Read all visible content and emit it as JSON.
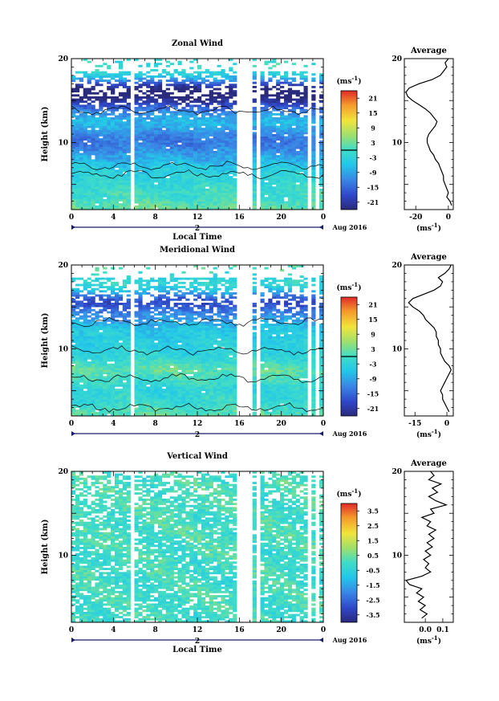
{
  "figure": {
    "x_axis_label": "Local Time",
    "date_label": "Aug 2016",
    "day_label": "2"
  },
  "chart_data": [
    {
      "type": "heatmap",
      "title": "Zonal Wind",
      "ylabel": "Height (km)",
      "xlabel": "Local Time",
      "x_ticks": [
        "0",
        "4",
        "8",
        "12",
        "16",
        "20",
        "0"
      ],
      "xlim": [
        0,
        24
      ],
      "ylim": [
        2,
        20
      ],
      "y_ticks": [
        "10",
        "20"
      ],
      "colorbar": {
        "unit": "(ms⁻¹)",
        "labels": [
          "21",
          "15",
          "9",
          "3",
          "-3",
          "-9",
          "-15",
          "-21"
        ],
        "range": [
          -24,
          24
        ],
        "contour_level": 0
      },
      "average": {
        "title": "Average",
        "xlabel": "(ms⁻¹)",
        "x_ticks": [
          "-20",
          "0"
        ],
        "xlim": [
          -27,
          3
        ],
        "ylim": [
          2,
          20
        ],
        "y_ticks": [
          "10",
          "20"
        ],
        "profile": [
          {
            "h": 2.5,
            "v": 2
          },
          {
            "h": 3,
            "v": 1
          },
          {
            "h": 3.5,
            "v": -1
          },
          {
            "h": 4,
            "v": 0
          },
          {
            "h": 4.5,
            "v": -1
          },
          {
            "h": 5,
            "v": -2
          },
          {
            "h": 5.5,
            "v": -3
          },
          {
            "h": 6,
            "v": -3
          },
          {
            "h": 6.5,
            "v": -4
          },
          {
            "h": 7,
            "v": -5
          },
          {
            "h": 7.5,
            "v": -6
          },
          {
            "h": 8,
            "v": -8
          },
          {
            "h": 8.5,
            "v": -9
          },
          {
            "h": 9,
            "v": -11
          },
          {
            "h": 9.5,
            "v": -12
          },
          {
            "h": 10,
            "v": -13
          },
          {
            "h": 10.5,
            "v": -13
          },
          {
            "h": 11,
            "v": -12
          },
          {
            "h": 11.5,
            "v": -10
          },
          {
            "h": 12,
            "v": -8
          },
          {
            "h": 12.5,
            "v": -7
          },
          {
            "h": 13,
            "v": -9
          },
          {
            "h": 13.5,
            "v": -11
          },
          {
            "h": 14,
            "v": -14
          },
          {
            "h": 14.5,
            "v": -18
          },
          {
            "h": 15,
            "v": -22
          },
          {
            "h": 15.5,
            "v": -25
          },
          {
            "h": 16,
            "v": -26
          },
          {
            "h": 16.5,
            "v": -24
          },
          {
            "h": 17,
            "v": -18
          },
          {
            "h": 17.5,
            "v": -10
          },
          {
            "h": 18,
            "v": -5
          },
          {
            "h": 18.5,
            "v": -3
          },
          {
            "h": 19,
            "v": -1
          },
          {
            "h": 19.5,
            "v": -2
          },
          {
            "h": 20,
            "v": 0
          }
        ]
      }
    },
    {
      "type": "heatmap",
      "title": "Meridional Wind",
      "ylabel": "Height (km)",
      "xlabel": "",
      "x_ticks": [
        "0",
        "4",
        "8",
        "12",
        "16",
        "20",
        "0"
      ],
      "xlim": [
        0,
        24
      ],
      "ylim": [
        2,
        20
      ],
      "y_ticks": [
        "10",
        "20"
      ],
      "colorbar": {
        "unit": "(ms⁻¹)",
        "labels": [
          "21",
          "15",
          "9",
          "3",
          "-3",
          "-9",
          "-15",
          "-21"
        ],
        "range": [
          -24,
          24
        ],
        "contour_level": 0
      },
      "average": {
        "title": "Average",
        "xlabel": "(ms⁻¹)",
        "x_ticks": [
          "-15",
          "0"
        ],
        "xlim": [
          -20,
          3
        ],
        "ylim": [
          2,
          20
        ],
        "y_ticks": [
          "10",
          "20"
        ],
        "profile": [
          {
            "h": 2.5,
            "v": 1
          },
          {
            "h": 3,
            "v": 0
          },
          {
            "h": 3.5,
            "v": -1
          },
          {
            "h": 4,
            "v": -2
          },
          {
            "h": 4.5,
            "v": -2
          },
          {
            "h": 5,
            "v": -3
          },
          {
            "h": 5.5,
            "v": -2
          },
          {
            "h": 6,
            "v": -1
          },
          {
            "h": 6.5,
            "v": 0
          },
          {
            "h": 7,
            "v": 1
          },
          {
            "h": 7.5,
            "v": 2
          },
          {
            "h": 8,
            "v": 1
          },
          {
            "h": 8.5,
            "v": -1
          },
          {
            "h": 9,
            "v": -2
          },
          {
            "h": 9.5,
            "v": -3
          },
          {
            "h": 10,
            "v": -3
          },
          {
            "h": 10.5,
            "v": -4
          },
          {
            "h": 11,
            "v": -4
          },
          {
            "h": 11.5,
            "v": -5
          },
          {
            "h": 12,
            "v": -5
          },
          {
            "h": 12.5,
            "v": -6
          },
          {
            "h": 13,
            "v": -8
          },
          {
            "h": 13.5,
            "v": -10
          },
          {
            "h": 14,
            "v": -11
          },
          {
            "h": 14.5,
            "v": -13
          },
          {
            "h": 15,
            "v": -16
          },
          {
            "h": 15.5,
            "v": -18
          },
          {
            "h": 16,
            "v": -16
          },
          {
            "h": 16.5,
            "v": -11
          },
          {
            "h": 17,
            "v": -6
          },
          {
            "h": 17.5,
            "v": -3
          },
          {
            "h": 18,
            "v": -2
          },
          {
            "h": 18.5,
            "v": -4
          },
          {
            "h": 19,
            "v": -1
          },
          {
            "h": 19.5,
            "v": 1
          },
          {
            "h": 20,
            "v": 2
          }
        ]
      }
    },
    {
      "type": "heatmap",
      "title": "Vertical Wind",
      "ylabel": "Height (km)",
      "xlabel": "Local Time",
      "x_ticks": [
        "0",
        "4",
        "8",
        "12",
        "16",
        "20",
        "0"
      ],
      "xlim": [
        0,
        24
      ],
      "ylim": [
        2,
        20
      ],
      "y_ticks": [
        "10",
        "20"
      ],
      "colorbar": {
        "unit": "(ms⁻¹)",
        "labels": [
          "3.5",
          "2.5",
          "1.5",
          "0.5",
          "-0.5",
          "-1.5",
          "-2.5",
          "-3.5"
        ],
        "range": [
          -4,
          4
        ],
        "contour_level": null
      },
      "average": {
        "title": "Average",
        "xlabel": "(ms⁻¹)",
        "x_ticks": [
          "0.0",
          "0.1"
        ],
        "xlim": [
          -0.12,
          0.16
        ],
        "ylim": [
          2,
          20
        ],
        "y_ticks": [
          "10",
          "20"
        ],
        "profile": [
          {
            "h": 2.5,
            "v": -0.02
          },
          {
            "h": 3,
            "v": 0.01
          },
          {
            "h": 3.5,
            "v": -0.03
          },
          {
            "h": 4,
            "v": 0.0
          },
          {
            "h": 4.5,
            "v": -0.04
          },
          {
            "h": 5,
            "v": -0.01
          },
          {
            "h": 5.5,
            "v": -0.05
          },
          {
            "h": 6,
            "v": -0.02
          },
          {
            "h": 6.5,
            "v": -0.09
          },
          {
            "h": 7,
            "v": -0.11
          },
          {
            "h": 7.5,
            "v": -0.02
          },
          {
            "h": 8,
            "v": 0.03
          },
          {
            "h": 8.5,
            "v": 0.0
          },
          {
            "h": 9,
            "v": 0.02
          },
          {
            "h": 9.5,
            "v": -0.01
          },
          {
            "h": 10,
            "v": 0.03
          },
          {
            "h": 10.5,
            "v": 0.0
          },
          {
            "h": 11,
            "v": 0.04
          },
          {
            "h": 11.5,
            "v": 0.01
          },
          {
            "h": 12,
            "v": 0.05
          },
          {
            "h": 12.5,
            "v": 0.02
          },
          {
            "h": 13,
            "v": 0.06
          },
          {
            "h": 13.5,
            "v": 0.01
          },
          {
            "h": 14,
            "v": 0.03
          },
          {
            "h": 14.5,
            "v": -0.02
          },
          {
            "h": 15,
            "v": 0.05
          },
          {
            "h": 15.5,
            "v": 0.03
          },
          {
            "h": 16,
            "v": 0.12
          },
          {
            "h": 16.5,
            "v": 0.06
          },
          {
            "h": 17,
            "v": 0.02
          },
          {
            "h": 17.5,
            "v": 0.07
          },
          {
            "h": 18,
            "v": 0.04
          },
          {
            "h": 18.5,
            "v": 0.09
          },
          {
            "h": 19,
            "v": 0.02
          },
          {
            "h": 19.5,
            "v": 0.05
          },
          {
            "h": 20,
            "v": 0.03
          }
        ]
      }
    }
  ]
}
